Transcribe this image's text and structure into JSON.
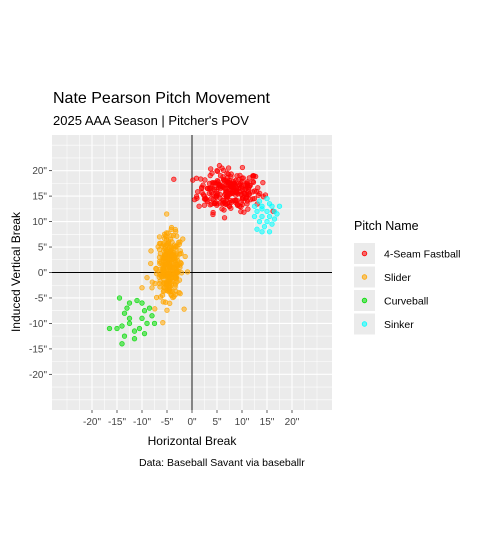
{
  "chart_data": {
    "type": "scatter",
    "title": "Nate Pearson Pitch Movement",
    "subtitle": "2025 AAA Season | Pitcher's POV",
    "xlabel": "Horizontal Break",
    "ylabel": "Induced Vertical Break",
    "caption": "Data: Baseball Savant via baseballr",
    "xlim": [
      -28,
      28
    ],
    "ylim": [
      -27,
      27
    ],
    "x_ticks": [
      -20,
      -15,
      -10,
      -5,
      0,
      5,
      10,
      15,
      20
    ],
    "x_tick_labels": [
      "-20\"",
      "-15\"",
      "-10\"",
      "-5\"",
      "0\"",
      "5\"",
      "10\"",
      "15\"",
      "20\""
    ],
    "y_ticks": [
      -20,
      -15,
      -10,
      -5,
      0,
      5,
      10,
      15,
      20
    ],
    "y_tick_labels": [
      "-20\"",
      "-15\"",
      "-10\"",
      "-5\"",
      "0\"",
      "5\"",
      "10\"",
      "15\"",
      "20\""
    ],
    "grid": true,
    "reference_lines": {
      "x": 0,
      "y": 0
    },
    "legend": {
      "title": "Pitch Name",
      "position": "right"
    },
    "series": [
      {
        "name": "4-Seam Fastball",
        "color": "#ff0000",
        "center": [
          7.5,
          16
        ],
        "spread": [
          3.2,
          2.0
        ],
        "count": 220,
        "points": [
          [
            2.5,
            15
          ],
          [
            2.8,
            14.5
          ],
          [
            3.5,
            16.5
          ],
          [
            3.5,
            17.5
          ],
          [
            4,
            19.5
          ],
          [
            5,
            20
          ],
          [
            6,
            20.5
          ],
          [
            7,
            19.5
          ],
          [
            9,
            19
          ],
          [
            10,
            18.5
          ],
          [
            11.5,
            17
          ],
          [
            12.5,
            16
          ],
          [
            12.5,
            14.5
          ],
          [
            11,
            13.5
          ],
          [
            9.5,
            13
          ],
          [
            7.5,
            13
          ],
          [
            6,
            12.5
          ],
          [
            5,
            13.5
          ]
        ]
      },
      {
        "name": "Slider",
        "color": "#ffa500",
        "center": [
          -4.5,
          1
        ],
        "spread": [
          1.3,
          3.2
        ],
        "count": 260,
        "points": [
          [
            -6.5,
            3
          ],
          [
            -6.5,
            7
          ],
          [
            -5.5,
            7.5
          ],
          [
            -4,
            6
          ],
          [
            -3,
            3
          ],
          [
            -3.5,
            -1
          ],
          [
            -4.5,
            -3.5
          ],
          [
            -8,
            -3
          ],
          [
            -9,
            -1
          ],
          [
            -10,
            -3
          ]
        ]
      },
      {
        "name": "Curveball",
        "color": "#00dd00",
        "center": [
          -11,
          -9
        ],
        "spread": [
          2.5,
          2.5
        ],
        "count": 0,
        "points": [
          [
            -14.5,
            -5
          ],
          [
            -12.5,
            -6
          ],
          [
            -11,
            -5.5
          ],
          [
            -10,
            -6
          ],
          [
            -8.5,
            -7
          ],
          [
            -13.5,
            -8
          ],
          [
            -12.5,
            -9
          ],
          [
            -10,
            -9
          ],
          [
            -8,
            -8.5
          ],
          [
            -9.5,
            -7.5
          ],
          [
            -7.5,
            -10
          ],
          [
            -16.5,
            -11
          ],
          [
            -15,
            -11
          ],
          [
            -14,
            -10.5
          ],
          [
            -12.5,
            -10
          ],
          [
            -11.5,
            -11.5
          ],
          [
            -10.5,
            -11
          ],
          [
            -13.5,
            -12.5
          ],
          [
            -11.5,
            -13
          ],
          [
            -14,
            -14
          ],
          [
            -9.5,
            -12
          ],
          [
            -9,
            -10
          ],
          [
            -13,
            -7
          ]
        ]
      },
      {
        "name": "Sinker",
        "color": "#00ffff",
        "center": [
          14.5,
          11.5
        ],
        "spread": [
          1.3,
          1.4
        ],
        "count": 0,
        "points": [
          [
            13.5,
            14
          ],
          [
            15,
            14.5
          ],
          [
            16,
            13
          ],
          [
            17.5,
            13
          ],
          [
            16.5,
            12
          ],
          [
            15,
            12
          ],
          [
            14,
            12.5
          ],
          [
            13,
            12
          ],
          [
            12.5,
            11
          ],
          [
            14,
            11
          ],
          [
            15.5,
            11
          ],
          [
            17,
            11.5
          ],
          [
            13.5,
            10
          ],
          [
            15,
            10
          ],
          [
            16,
            9.5
          ],
          [
            14.5,
            9
          ],
          [
            13,
            8.5
          ],
          [
            15.5,
            8
          ],
          [
            14,
            8
          ],
          [
            16.5,
            10.5
          ],
          [
            12.5,
            13
          ],
          [
            15.5,
            13.5
          ],
          [
            14,
            13
          ]
        ]
      }
    ]
  }
}
